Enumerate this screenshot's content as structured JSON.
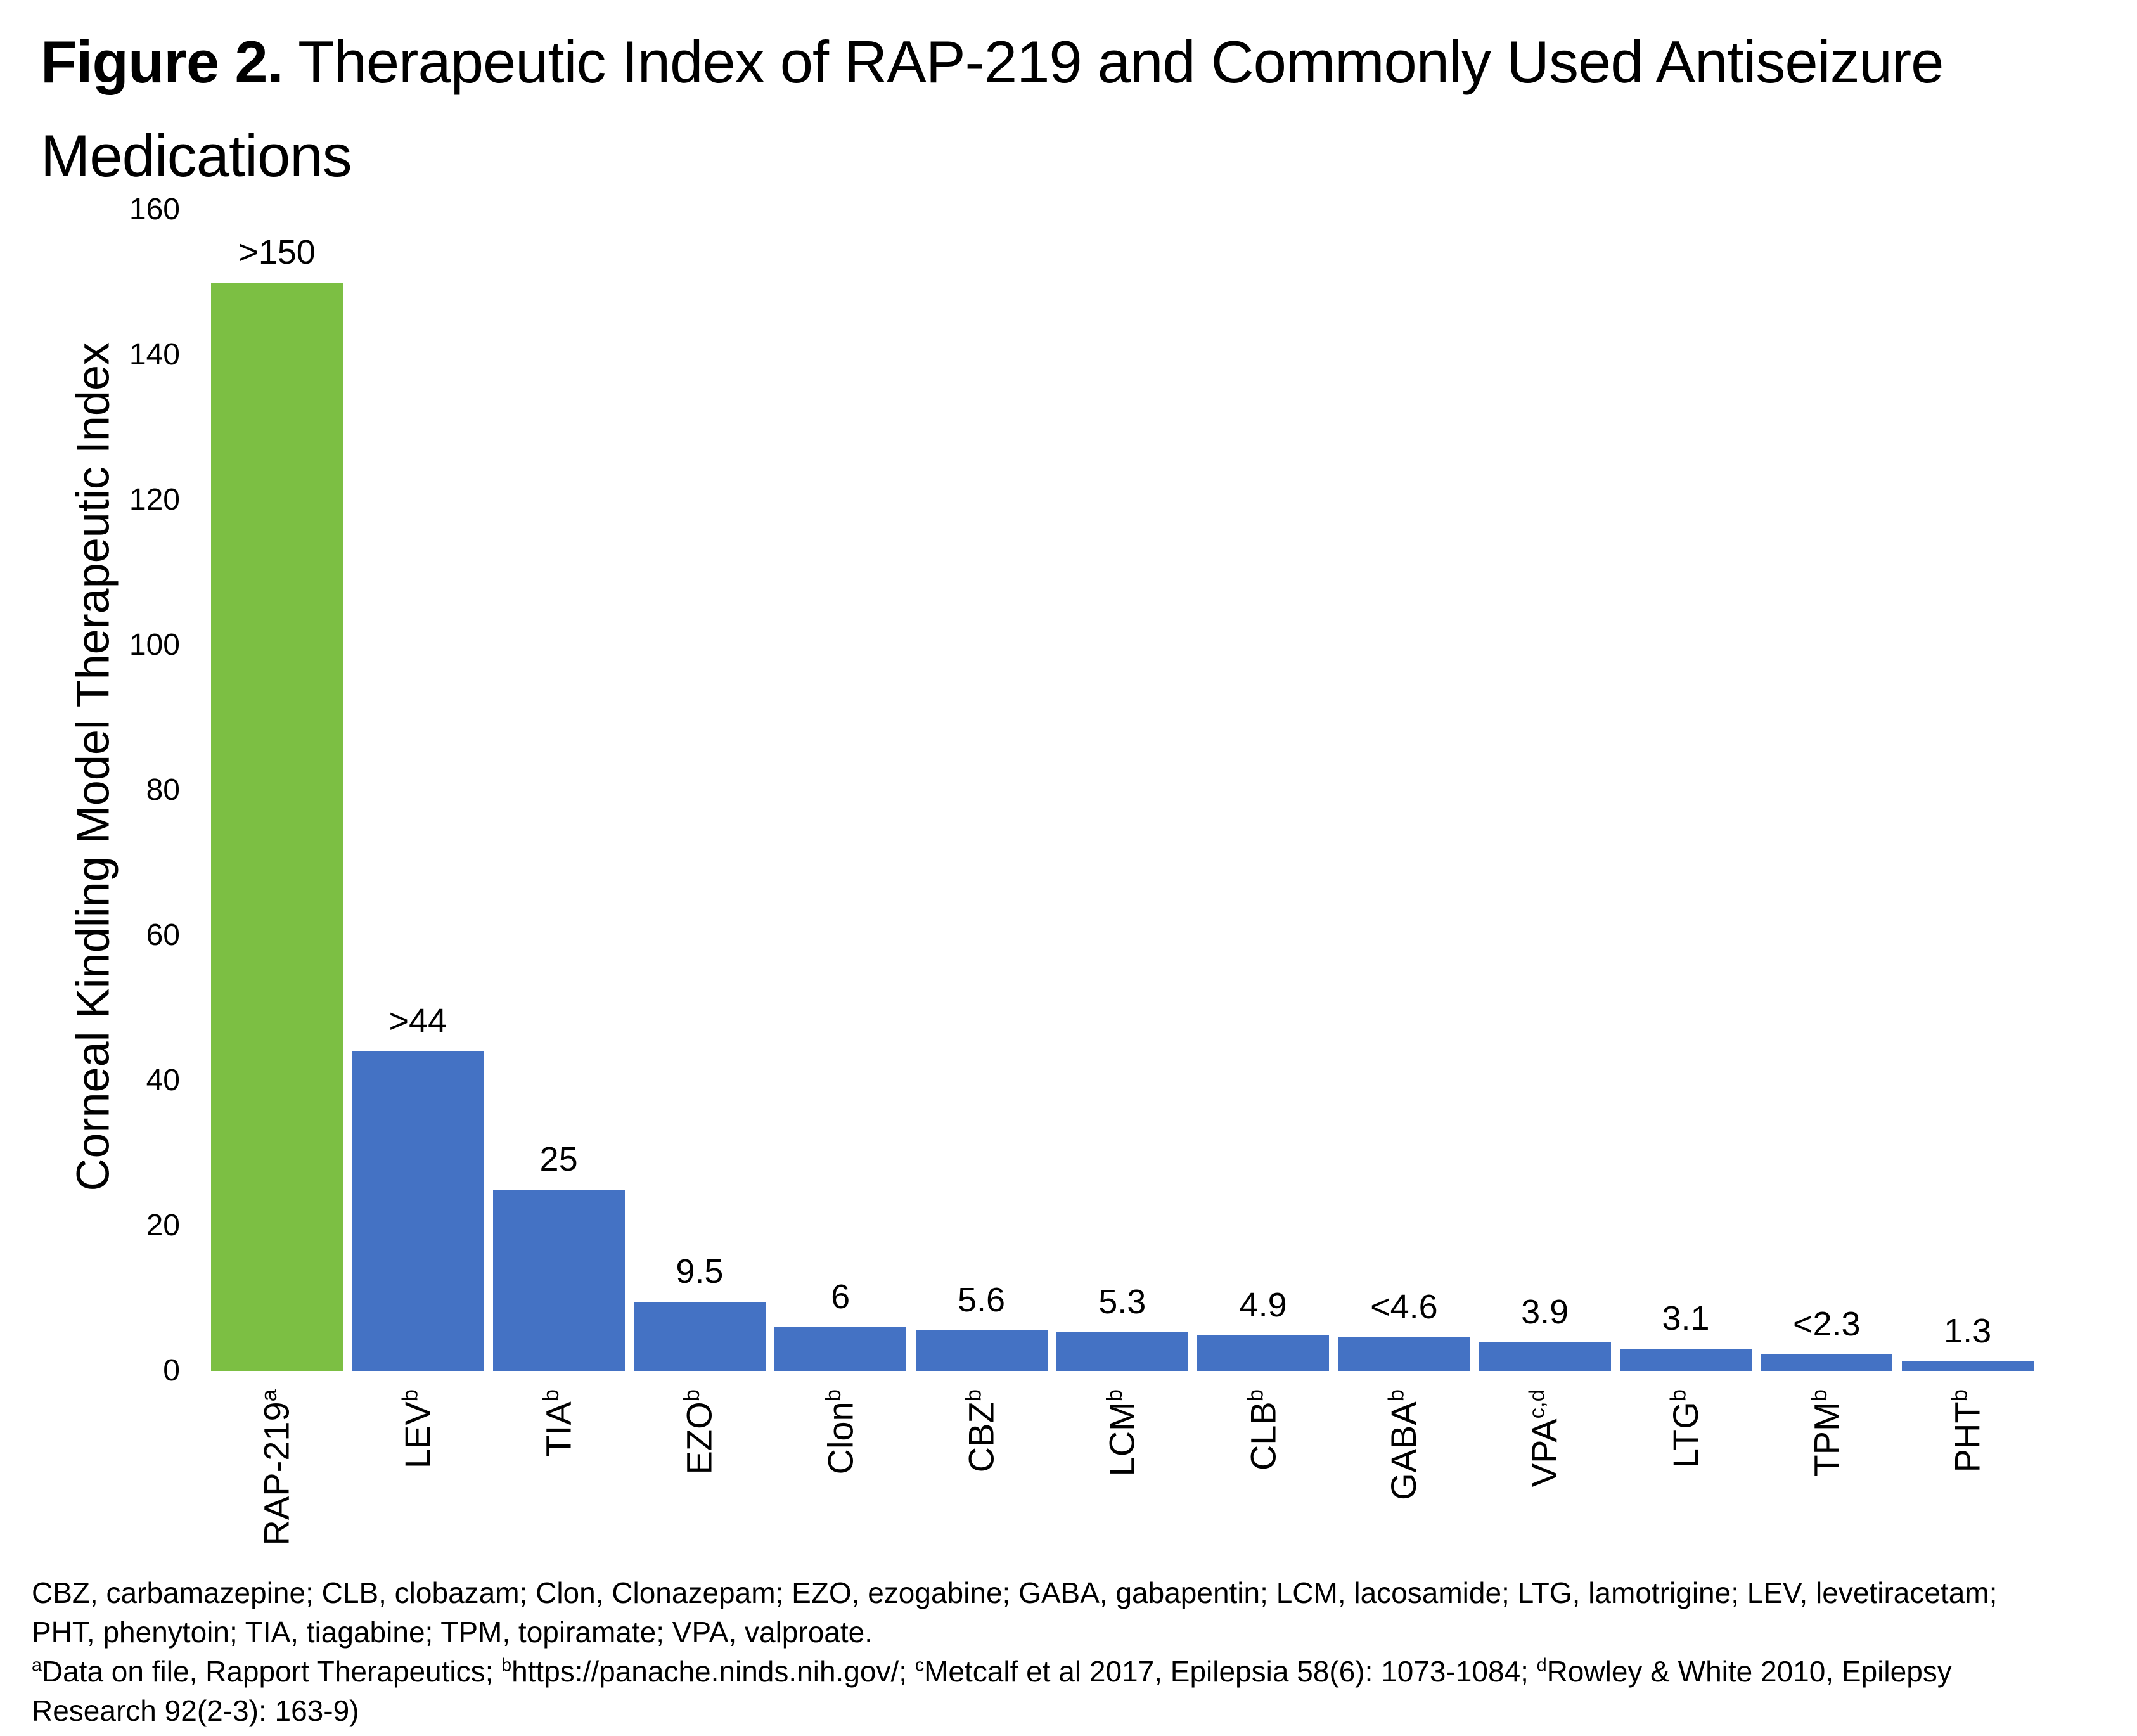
{
  "title": {
    "line1_bold": "Figure 2.",
    "line1_rest": " Therapeutic Index of RAP-219 and Commonly Used Antiseizure",
    "line2": "Medications"
  },
  "colors": {
    "rap219_green": "#7CBF43",
    "asm_blue": "#4472C4",
    "text": "#000000",
    "background": "#FFFFFF"
  },
  "chart_data": {
    "type": "bar",
    "title": "Figure 2. Therapeutic Index of RAP-219 and Commonly Used Antiseizure Medications",
    "xlabel": "",
    "ylabel": "Corneal Kindling Model Therapeutic Index",
    "ylim": [
      0,
      160
    ],
    "yticks": [
      0,
      20,
      40,
      60,
      80,
      100,
      120,
      140,
      160
    ],
    "grid": false,
    "legend": "none",
    "bars": [
      {
        "label": "RAP-219",
        "sup": "a",
        "value": 150,
        "value_label": ">150",
        "color": "#7CBF43"
      },
      {
        "label": "LEV",
        "sup": "b",
        "value": 44,
        "value_label": ">44",
        "color": "#4472C4"
      },
      {
        "label": "TIA",
        "sup": "b",
        "value": 25,
        "value_label": "25",
        "color": "#4472C4"
      },
      {
        "label": "EZO",
        "sup": "b",
        "value": 9.5,
        "value_label": "9.5",
        "color": "#4472C4"
      },
      {
        "label": "Clon",
        "sup": "b",
        "value": 6,
        "value_label": "6",
        "color": "#4472C4"
      },
      {
        "label": "CBZ",
        "sup": "b",
        "value": 5.6,
        "value_label": "5.6",
        "color": "#4472C4"
      },
      {
        "label": "LCM",
        "sup": "b",
        "value": 5.3,
        "value_label": "5.3",
        "color": "#4472C4"
      },
      {
        "label": "CLB",
        "sup": "b",
        "value": 4.9,
        "value_label": "4.9",
        "color": "#4472C4"
      },
      {
        "label": "GABA",
        "sup": "b",
        "value": 4.6,
        "value_label": "<4.6",
        "color": "#4472C4"
      },
      {
        "label": "VPA",
        "sup": "c,d",
        "value": 3.9,
        "value_label": "3.9",
        "color": "#4472C4"
      },
      {
        "label": "LTG",
        "sup": "b",
        "value": 3.1,
        "value_label": "3.1",
        "color": "#4472C4"
      },
      {
        "label": "TPM",
        "sup": "b",
        "value": 2.3,
        "value_label": "<2.3",
        "color": "#4472C4"
      },
      {
        "label": "PHT",
        "sup": "b",
        "value": 1.3,
        "value_label": "1.3",
        "color": "#4472C4"
      }
    ]
  },
  "footnotes": {
    "abbreviations": {
      "lines": [
        "CBZ, carbamazepine; CLB, clobazam; Clon, Clonazepam; EZO, ezogabine; GABA, gabapentin; LCM, lacosamide; LTG, lamotrigine; LEV, levetiracetam;",
        "PHT, phenytoin; TIA, tiagabine; TPM, topiramate; VPA, valproate."
      ]
    },
    "sources": {
      "lines": [
        [
          {
            "sup": "a"
          },
          {
            "text": "Data on file, Rapport Therapeutics; "
          },
          {
            "sup": "b"
          },
          {
            "text": "https://panache.ninds.nih.gov/; "
          },
          {
            "sup": "c"
          },
          {
            "text": "Metcalf et al 2017, Epilepsia 58(6): 1073-1084; "
          },
          {
            "sup": "d"
          },
          {
            "text": "Rowley & White 2010, Epilepsy"
          }
        ],
        [
          {
            "text": "Research 92(2-3): 163-9)"
          }
        ]
      ]
    }
  }
}
